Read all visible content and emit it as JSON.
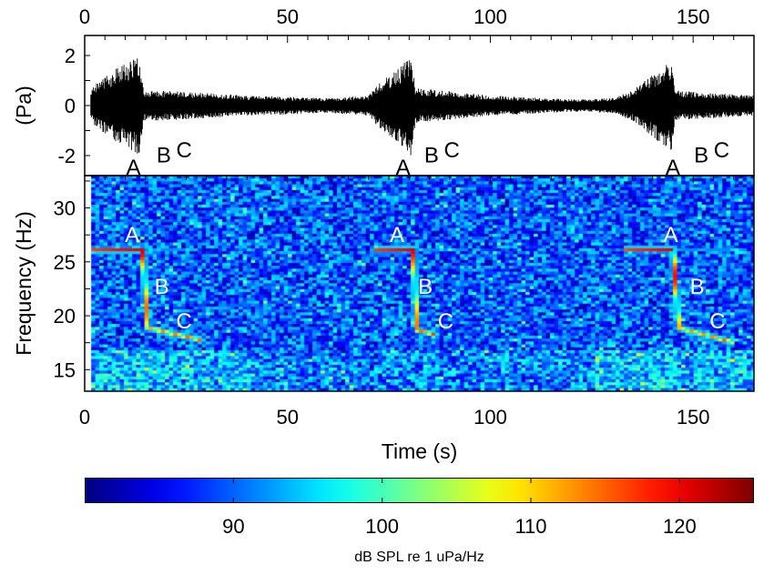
{
  "chart_data": [
    {
      "type": "line",
      "panel": "waveform",
      "ylabel": "(Pa)",
      "xlim": [
        0,
        165
      ],
      "ylim": [
        -2.8,
        2.8
      ],
      "xticks": [
        0,
        50,
        100,
        150
      ],
      "yticks": [
        -2,
        0,
        2
      ],
      "xtick_position": "top",
      "series": [
        {
          "name": "pressure amplitude envelope",
          "color": "#000000",
          "envelope_t": [
            1.5,
            3,
            8,
            13.5,
            14.5,
            20,
            40,
            60,
            70,
            72,
            78,
            80.5,
            81.5,
            88,
            100,
            120,
            130,
            135,
            141,
            144.8,
            145.5,
            155,
            165
          ],
          "envelope_amp": [
            0.6,
            0.9,
            1.5,
            2.0,
            0.6,
            0.6,
            0.4,
            0.3,
            0.4,
            0.8,
            1.6,
            2.0,
            0.7,
            0.6,
            0.4,
            0.25,
            0.3,
            0.6,
            1.4,
            1.9,
            0.6,
            0.5,
            0.4
          ]
        }
      ],
      "annotations": [
        {
          "text": "A",
          "t": 12,
          "y": -2.4
        },
        {
          "text": "B",
          "t": 19.5,
          "y": -1.9
        },
        {
          "text": "C",
          "t": 24.5,
          "y": -1.7
        },
        {
          "text": "A",
          "t": 78.5,
          "y": -2.4
        },
        {
          "text": "B",
          "t": 85.5,
          "y": -1.9
        },
        {
          "text": "C",
          "t": 90.5,
          "y": -1.7
        },
        {
          "text": "A",
          "t": 145,
          "y": -2.4
        },
        {
          "text": "B",
          "t": 152,
          "y": -1.9
        },
        {
          "text": "C",
          "t": 157,
          "y": -1.7
        }
      ]
    },
    {
      "type": "heatmap",
      "panel": "spectrogram",
      "xlabel": "Time (s)",
      "ylabel": "Frequency (Hz)",
      "xlim": [
        0,
        165
      ],
      "ylim": [
        13,
        33
      ],
      "xticks": [
        0,
        50,
        100,
        150
      ],
      "yticks": [
        15,
        20,
        25,
        30
      ],
      "colormap": "jet",
      "clim": [
        80,
        125
      ],
      "background_level_db": 88,
      "calls": [
        {
          "track": [
            [
              1.6,
              26.2,
              119
            ],
            [
              13.8,
              26.2,
              123
            ],
            [
              15,
              19,
              112
            ],
            [
              28,
              17.9,
              116
            ]
          ]
        },
        {
          "track": [
            [
              71,
              26.3,
              119
            ],
            [
              80.5,
              26.3,
              123
            ],
            [
              81.4,
              18.8,
              114
            ],
            [
              86,
              18.4,
              118
            ]
          ]
        },
        {
          "track": [
            [
              133,
              26.3,
              119
            ],
            [
              144.5,
              26.3,
              123
            ],
            [
              146,
              19,
              112
            ],
            [
              159,
              17.7,
              116
            ]
          ]
        }
      ],
      "annotations": [
        {
          "text": "A",
          "t": 11.7,
          "f": 27.6
        },
        {
          "text": "B",
          "t": 19,
          "f": 22.8
        },
        {
          "text": "C",
          "t": 24.5,
          "f": 19.6
        },
        {
          "text": "A",
          "t": 77,
          "f": 27.6
        },
        {
          "text": "B",
          "t": 84,
          "f": 22.8
        },
        {
          "text": "C",
          "t": 89,
          "f": 19.6
        },
        {
          "text": "A",
          "t": 144.5,
          "f": 27.6
        },
        {
          "text": "B",
          "t": 151,
          "f": 22.8
        },
        {
          "text": "C",
          "t": 156,
          "f": 19.6
        }
      ]
    },
    {
      "type": "colorbar",
      "label": "dB SPL re 1 uPa/Hz",
      "range": [
        80,
        125
      ],
      "ticks": [
        90,
        100,
        110,
        120
      ]
    }
  ]
}
